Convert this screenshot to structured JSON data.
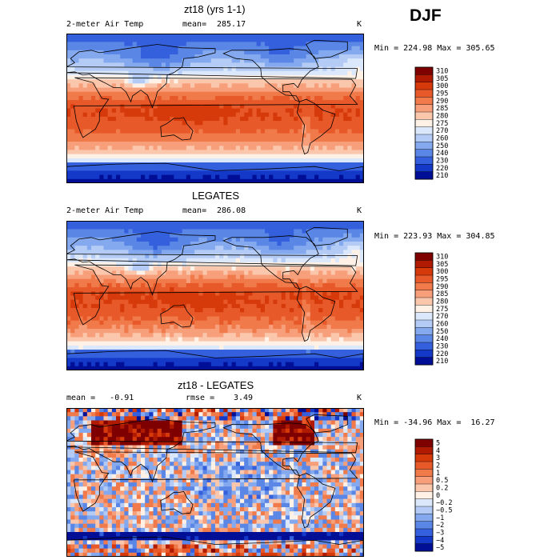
{
  "season": "DJF",
  "panels": [
    {
      "title": "zt18 (yrs 1-1)",
      "left_label": "2-meter Air Temp",
      "stat_label": "mean=",
      "stat_value": "285.17",
      "units": "K",
      "minmax": "Min = 224.98 Max = 305.65"
    },
    {
      "title": "LEGATES",
      "left_label": "2-meter Air Temp",
      "stat_label": "mean=",
      "stat_value": "286.08",
      "units": "K",
      "minmax": "Min = 223.93 Max = 304.85"
    },
    {
      "title": "zt18 - LEGATES",
      "left_label": "mean =   -0.91",
      "stat_label": "rmse =",
      "stat_value": "3.49",
      "units": "K",
      "minmax": "Min = -34.96 Max =  16.27"
    }
  ],
  "chart_data": [
    {
      "type": "heatmap",
      "title": "zt18 (yrs 1-1)",
      "field": "2-meter Air Temp",
      "units": "K",
      "mean": 285.17,
      "min": 224.98,
      "max": 305.65,
      "colorbar": {
        "levels": [
          "310",
          "305",
          "300",
          "295",
          "290",
          "285",
          "280",
          "275",
          "270",
          "260",
          "250",
          "240",
          "230",
          "220",
          "210"
        ],
        "colors": [
          "#7f0000",
          "#b01a00",
          "#d63a0a",
          "#e8592a",
          "#f07a4a",
          "#f79f7a",
          "#fbc7ac",
          "#fff1e6",
          "#dbe8fb",
          "#b4ccf5",
          "#84a9ee",
          "#5a86e6",
          "#3460dd",
          "#1438c8",
          "#000f96"
        ]
      }
    },
    {
      "type": "heatmap",
      "title": "LEGATES",
      "field": "2-meter Air Temp",
      "units": "K",
      "mean": 286.08,
      "min": 223.93,
      "max": 304.85,
      "colorbar": {
        "levels": [
          "310",
          "305",
          "300",
          "295",
          "290",
          "285",
          "280",
          "275",
          "270",
          "260",
          "250",
          "240",
          "230",
          "220",
          "210"
        ],
        "colors": [
          "#7f0000",
          "#b01a00",
          "#d63a0a",
          "#e8592a",
          "#f07a4a",
          "#f79f7a",
          "#fbc7ac",
          "#fff1e6",
          "#dbe8fb",
          "#b4ccf5",
          "#84a9ee",
          "#5a86e6",
          "#3460dd",
          "#1438c8",
          "#000f96"
        ]
      }
    },
    {
      "type": "heatmap",
      "title": "zt18 - LEGATES",
      "units": "K",
      "mean": -0.91,
      "rmse": 3.49,
      "min": -34.96,
      "max": 16.27,
      "colorbar": {
        "levels": [
          "5",
          "4",
          "3",
          "2",
          "1",
          "0.5",
          "0.2",
          "0",
          "−0.2",
          "−0.5",
          "−1",
          "−2",
          "−3",
          "−4",
          "−5"
        ],
        "colors": [
          "#7f0000",
          "#b01a00",
          "#d63a0a",
          "#e8592a",
          "#f07a4a",
          "#f79f7a",
          "#fbc7ac",
          "#fff1e6",
          "#dbe8fb",
          "#b4ccf5",
          "#84a9ee",
          "#5a86e6",
          "#3460dd",
          "#1438c8",
          "#000f96"
        ]
      }
    }
  ]
}
